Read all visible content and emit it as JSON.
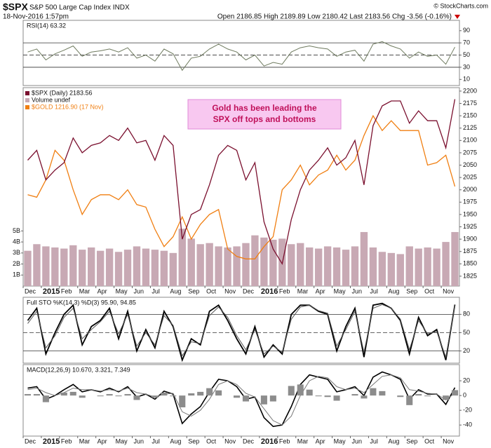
{
  "header": {
    "symbol": "$SPX",
    "name": "S&P 500 Large Cap Index INDX",
    "date": "18-Nov-2016 1:57pm",
    "quote": "Open 2186.85 High 2189.89 Low 2180.42 Last 2183.56 Chg -3.56 (-0.16%)",
    "source": "© StockCharts.com"
  },
  "chart_data": [
    {
      "type": "line",
      "title": "RSI(14) 63.32",
      "ylim": [
        0,
        107
      ],
      "yticks": [
        10,
        30,
        50,
        70,
        90
      ],
      "hlines": [
        30,
        50,
        70
      ],
      "series": [
        {
          "color": "#6e7a5e",
          "values": [
            55,
            60,
            42,
            52,
            58,
            65,
            48,
            55,
            57,
            60,
            55,
            62,
            45,
            50,
            40,
            60,
            52,
            25,
            45,
            48,
            60,
            68,
            60,
            55,
            42,
            50,
            32,
            38,
            35,
            55,
            62,
            65,
            62,
            60,
            48,
            55,
            58,
            40,
            68,
            72,
            65,
            60,
            45,
            55,
            48,
            50,
            35,
            63
          ]
        }
      ]
    },
    {
      "type": "price",
      "categories": [
        "Dec",
        null,
        "2015",
        null,
        "Feb",
        null,
        "Mar",
        null,
        "Apr",
        null,
        "May",
        null,
        "Jun",
        null,
        "Jul",
        null,
        "Aug",
        null,
        "Sep",
        null,
        "Oct",
        null,
        "Nov",
        null,
        "Dec",
        null,
        "2016",
        null,
        "Feb",
        null,
        "Mar",
        null,
        "Apr",
        null,
        "May",
        null,
        "Jun",
        null,
        "Jul",
        null,
        "Aug",
        null,
        "Sep",
        null,
        "Oct",
        null,
        "Nov",
        null
      ],
      "ylim": [
        1805,
        2207
      ],
      "yticks": [
        1825,
        1850,
        1875,
        1900,
        1925,
        1950,
        1975,
        2000,
        2025,
        2050,
        2075,
        2100,
        2125,
        2150,
        2175,
        2200
      ],
      "y2lim": [
        1015,
        1417
      ],
      "volume_lim": [
        0,
        18
      ],
      "volume_ticks": [
        {
          "value": 1,
          "label": "1B"
        },
        {
          "value": 2,
          "label": "2B"
        },
        {
          "value": 3,
          "label": "3B"
        },
        {
          "value": 4,
          "label": "4B"
        },
        {
          "value": 5,
          "label": "5B"
        }
      ],
      "annotation": [
        "Gold has been leading the",
        "SPX off tops and bottoms"
      ],
      "series": [
        {
          "name": "$SPX (Daily) 2183.56",
          "color": "#7a0f2e",
          "values": [
            2060,
            2080,
            2020,
            2040,
            2055,
            2105,
            2075,
            2090,
            2095,
            2110,
            2100,
            2125,
            2095,
            2100,
            2060,
            2110,
            2090,
            1900,
            1950,
            1960,
            2010,
            2070,
            2090,
            2080,
            2020,
            2055,
            1935,
            1880,
            1850,
            1940,
            2000,
            2040,
            2060,
            2085,
            2050,
            2065,
            2100,
            2010,
            2130,
            2170,
            2180,
            2180,
            2135,
            2160,
            2140,
            2140,
            2085,
            2183.56
          ]
        },
        {
          "name": "Volume undef",
          "color": "#c8a9b4",
          "axis": "volume",
          "values": [
            3.2,
            3.8,
            3.6,
            3.5,
            3.4,
            3.7,
            3.3,
            3.5,
            3.2,
            3.4,
            3.1,
            3.3,
            3.6,
            3.4,
            3.3,
            3.2,
            3.0,
            5.2,
            4.3,
            3.8,
            3.9,
            3.6,
            3.5,
            3.6,
            3.9,
            4.6,
            4.4,
            4.2,
            4.3,
            3.8,
            3.9,
            3.5,
            3.4,
            3.6,
            3.5,
            3.3,
            3.6,
            4.9,
            3.5,
            3.1,
            3.0,
            2.9,
            3.6,
            3.4,
            3.5,
            3.4,
            4.0,
            4.9
          ]
        },
        {
          "name": "$GOLD 1216.90 (17 Nov)",
          "color": "#f07f12",
          "axis": "y2",
          "values": [
            1200,
            1195,
            1230,
            1290,
            1270,
            1210,
            1160,
            1190,
            1200,
            1200,
            1190,
            1210,
            1180,
            1175,
            1130,
            1095,
            1115,
            1155,
            1110,
            1140,
            1160,
            1170,
            1090,
            1075,
            1070,
            1070,
            1095,
            1115,
            1210,
            1230,
            1260,
            1220,
            1240,
            1250,
            1280,
            1250,
            1270,
            1320,
            1360,
            1330,
            1350,
            1330,
            1330,
            1330,
            1260,
            1265,
            1280,
            1216.9
          ]
        }
      ]
    },
    {
      "type": "line",
      "title": "Full STO %K(14,3) %D(3) 95.90, 94.85",
      "ylim": [
        0,
        108
      ],
      "yticks": [
        20,
        50,
        80
      ],
      "hlines": [
        20,
        50,
        80
      ],
      "series": [
        {
          "color": "#000000",
          "values": [
            70,
            90,
            15,
            50,
            80,
            95,
            30,
            60,
            70,
            90,
            40,
            85,
            20,
            55,
            25,
            85,
            60,
            5,
            40,
            30,
            85,
            95,
            70,
            40,
            15,
            60,
            10,
            30,
            15,
            80,
            95,
            95,
            85,
            80,
            20,
            60,
            90,
            10,
            95,
            98,
            90,
            70,
            15,
            75,
            45,
            55,
            5,
            95.9
          ]
        },
        {
          "color": "#555555",
          "values": [
            65,
            85,
            25,
            45,
            75,
            90,
            40,
            55,
            68,
            85,
            48,
            80,
            28,
            50,
            30,
            78,
            62,
            12,
            35,
            32,
            78,
            92,
            75,
            45,
            22,
            55,
            15,
            28,
            18,
            72,
            92,
            95,
            86,
            82,
            28,
            55,
            85,
            18,
            90,
            96,
            90,
            72,
            22,
            70,
            48,
            52,
            10,
            94.85
          ]
        }
      ]
    },
    {
      "type": "macd",
      "title": "MACD(12,26,9) 10.670, 3.321, 7.349",
      "ylim": [
        -55,
        42
      ],
      "yticks": [
        -40,
        -20,
        0,
        20
      ],
      "categories": [
        "Dec",
        null,
        "2015",
        null,
        "Feb",
        null,
        "Mar",
        null,
        "Apr",
        null,
        "May",
        null,
        "Jun",
        null,
        "Jul",
        null,
        "Aug",
        null,
        "Sep",
        null,
        "Oct",
        null,
        "Nov",
        null,
        "Dec",
        null,
        "2016",
        null,
        "Feb",
        null,
        "Mar",
        null,
        "Apr",
        null,
        "May",
        null,
        "Jun",
        null,
        "Jul",
        null,
        "Aug",
        null,
        "Sep",
        null,
        "Oct",
        null,
        "Nov",
        null
      ],
      "series": [
        {
          "color": "#000000",
          "values": [
            10,
            12,
            -5,
            0,
            8,
            15,
            5,
            8,
            5,
            10,
            5,
            12,
            -2,
            2,
            -5,
            6,
            2,
            -38,
            -25,
            -15,
            5,
            22,
            20,
            12,
            -5,
            -2,
            -30,
            -42,
            -40,
            -15,
            15,
            28,
            25,
            22,
            5,
            8,
            12,
            0,
            25,
            32,
            28,
            22,
            -5,
            8,
            2,
            2,
            -12,
            10.67
          ]
        },
        {
          "color": "#777777",
          "values": [
            8,
            10,
            4,
            0,
            4,
            10,
            8,
            8,
            6,
            8,
            6,
            10,
            4,
            2,
            -2,
            2,
            3,
            -22,
            -28,
            -20,
            -5,
            15,
            20,
            15,
            3,
            -2,
            -18,
            -34,
            -40,
            -28,
            0,
            20,
            26,
            24,
            12,
            8,
            10,
            4,
            15,
            26,
            28,
            24,
            8,
            6,
            3,
            2,
            -6,
            3.321
          ]
        },
        {
          "color": "#8c8c8c",
          "type": "bar",
          "values": [
            2,
            2,
            -9,
            0,
            4,
            5,
            -3,
            0,
            -1,
            2,
            -1,
            2,
            -6,
            0,
            -3,
            4,
            -1,
            -16,
            3,
            5,
            10,
            7,
            0,
            -3,
            -8,
            0,
            -12,
            -8,
            0,
            13,
            15,
            8,
            -1,
            -2,
            -7,
            0,
            2,
            -4,
            10,
            6,
            0,
            -2,
            -13,
            2,
            -1,
            0,
            -6,
            7.349
          ]
        }
      ]
    }
  ]
}
